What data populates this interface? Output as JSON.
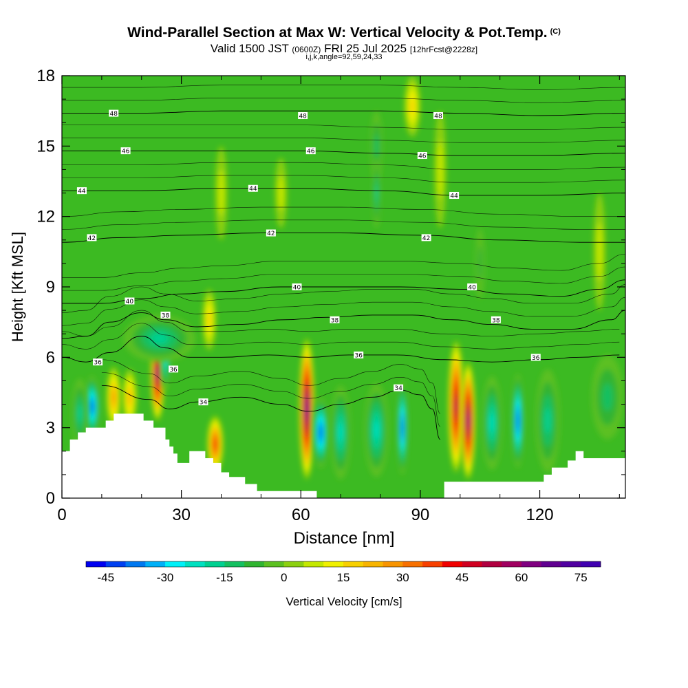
{
  "header": {
    "title": "Wind-Parallel Section at Max W: Vertical Velocity & Pot.Temp.",
    "copyright": "(C)",
    "valid_prefix": "Valid 1500 JST",
    "valid_utc": "(0600Z)",
    "valid_date": "FRI 25 Jul 2025",
    "forecast_info": "[12hrFcst@2228z]",
    "grid_info": "i,j,k,angle=92,59,24,33"
  },
  "chart_data": {
    "type": "heatmap",
    "xlabel": "Distance [nm]",
    "ylabel": "Height [Kft MSL]",
    "xlim": [
      0,
      141.5
    ],
    "ylim": [
      0,
      18
    ],
    "x_ticks": [
      0,
      30,
      60,
      90,
      120
    ],
    "y_ticks": [
      0,
      3,
      6,
      9,
      12,
      15,
      18
    ],
    "x_tick_labels": [
      "0",
      "30",
      "60",
      "90",
      "120"
    ],
    "y_tick_labels": [
      "0",
      "3",
      "6",
      "9",
      "12",
      "15",
      "18"
    ],
    "background_color": "#3cba22",
    "colorbar": {
      "label": "Vertical Velocity [cm/s]",
      "min": -50,
      "max": 80,
      "step": 5,
      "tick_values": [
        -45,
        -30,
        -15,
        0,
        15,
        30,
        45,
        60,
        75
      ],
      "tick_labels": [
        "-45",
        "-30",
        "-15",
        "0",
        "15",
        "30",
        "45",
        "60",
        "75"
      ],
      "colors": [
        "#0000f0",
        "#0040f0",
        "#0078f0",
        "#00b0f8",
        "#00f0f8",
        "#00e0c0",
        "#00d090",
        "#14c060",
        "#30b430",
        "#5cc020",
        "#8cd010",
        "#c4e800",
        "#f0f000",
        "#f8d000",
        "#f8b400",
        "#f89400",
        "#f87000",
        "#f84000",
        "#f00000",
        "#d00020",
        "#b00040",
        "#a00060",
        "#800080",
        "#600090",
        "#5000a0",
        "#4000b0"
      ]
    },
    "terrain": [
      [
        0,
        0
      ],
      [
        0,
        2
      ],
      [
        2,
        2
      ],
      [
        2,
        2.5
      ],
      [
        4,
        2.5
      ],
      [
        4,
        2.8
      ],
      [
        6,
        2.8
      ],
      [
        6,
        3.0
      ],
      [
        11,
        3.0
      ],
      [
        11,
        3.3
      ],
      [
        13,
        3.3
      ],
      [
        13,
        3.6
      ],
      [
        20.5,
        3.6
      ],
      [
        20.5,
        3.3
      ],
      [
        23,
        3.3
      ],
      [
        23,
        3.0
      ],
      [
        26,
        3.0
      ],
      [
        26,
        2.5
      ],
      [
        27,
        2.5
      ],
      [
        27,
        2.2
      ],
      [
        28,
        2.2
      ],
      [
        28,
        1.9
      ],
      [
        29,
        1.9
      ],
      [
        29,
        1.5
      ],
      [
        32,
        1.5
      ],
      [
        32,
        2.0
      ],
      [
        36,
        2.0
      ],
      [
        36,
        1.7
      ],
      [
        38,
        1.7
      ],
      [
        38,
        1.5
      ],
      [
        40,
        1.5
      ],
      [
        40,
        1.1
      ],
      [
        42,
        1.1
      ],
      [
        42,
        0.9
      ],
      [
        46,
        0.9
      ],
      [
        46,
        0.6
      ],
      [
        49,
        0.6
      ],
      [
        49,
        0.3
      ],
      [
        64,
        0.3
      ],
      [
        64,
        0.0
      ],
      [
        96,
        0.0
      ],
      [
        96,
        0.7
      ],
      [
        121,
        0.7
      ],
      [
        121,
        1.0
      ],
      [
        123,
        1.0
      ],
      [
        123,
        1.3
      ],
      [
        127,
        1.3
      ],
      [
        127,
        1.6
      ],
      [
        129,
        1.6
      ],
      [
        129,
        2.0
      ],
      [
        131,
        2.0
      ],
      [
        131,
        1.7
      ],
      [
        141.5,
        1.7
      ],
      [
        141.5,
        0
      ]
    ],
    "velocity_cells": [
      {
        "x": 7.5,
        "y": 3.9,
        "rx": 2.0,
        "ry": 1.3,
        "value": -45
      },
      {
        "x": 4.5,
        "y": 3.6,
        "rx": 2.0,
        "ry": 1.5,
        "value": -20
      },
      {
        "x": 13,
        "y": 4.3,
        "rx": 1.8,
        "ry": 1.3,
        "value": 30
      },
      {
        "x": 17,
        "y": 4.3,
        "rx": 1.8,
        "ry": 1.2,
        "value": 25
      },
      {
        "x": 24,
        "y": 5.3,
        "rx": 1.7,
        "ry": 2.0,
        "value": 70
      },
      {
        "x": 26,
        "y": 6.1,
        "rx": 1.2,
        "ry": 1.5,
        "value": -35
      },
      {
        "x": 24.5,
        "y": 6.8,
        "rx": 9.0,
        "ry": 1.0,
        "value": -20
      },
      {
        "x": 38.5,
        "y": 2.3,
        "rx": 2.0,
        "ry": 1.2,
        "value": 45
      },
      {
        "x": 37,
        "y": 7.6,
        "rx": 1.7,
        "ry": 1.3,
        "value": 20
      },
      {
        "x": 61.5,
        "y": 3.8,
        "rx": 1.9,
        "ry": 3.0,
        "value": 75
      },
      {
        "x": 65,
        "y": 2.8,
        "rx": 2.0,
        "ry": 1.5,
        "value": -45
      },
      {
        "x": 70,
        "y": 2.8,
        "rx": 2.5,
        "ry": 2.0,
        "value": -25
      },
      {
        "x": 79,
        "y": 2.9,
        "rx": 3.0,
        "ry": 2.0,
        "value": -25
      },
      {
        "x": 85.5,
        "y": 3.0,
        "rx": 1.3,
        "ry": 2.0,
        "value": -45
      },
      {
        "x": 99,
        "y": 3.9,
        "rx": 2.0,
        "ry": 2.8,
        "value": 60
      },
      {
        "x": 102,
        "y": 3.3,
        "rx": 1.8,
        "ry": 2.5,
        "value": 70
      },
      {
        "x": 108,
        "y": 3.2,
        "rx": 2.5,
        "ry": 2.0,
        "value": -25
      },
      {
        "x": 114.5,
        "y": 3.3,
        "rx": 1.5,
        "ry": 2.0,
        "value": -45
      },
      {
        "x": 122,
        "y": 3.3,
        "rx": 3.0,
        "ry": 2.2,
        "value": -20
      },
      {
        "x": 137,
        "y": 4.3,
        "rx": 4.0,
        "ry": 1.8,
        "value": -15
      },
      {
        "x": 88,
        "y": 16.7,
        "rx": 2.0,
        "ry": 1.3,
        "value": 20
      },
      {
        "x": 79,
        "y": 15.0,
        "rx": 1.5,
        "ry": 1.5,
        "value": -15
      },
      {
        "x": 79,
        "y": 13.0,
        "rx": 1.0,
        "ry": 1.5,
        "value": -20
      },
      {
        "x": 40,
        "y": 13.0,
        "rx": 1.5,
        "ry": 2.0,
        "value": 10
      },
      {
        "x": 55,
        "y": 13.0,
        "rx": 1.5,
        "ry": 1.5,
        "value": 10
      },
      {
        "x": 95,
        "y": 14.0,
        "rx": 1.5,
        "ry": 2.5,
        "value": 10
      },
      {
        "x": 135,
        "y": 10.5,
        "rx": 1.5,
        "ry": 2.5,
        "value": 10
      },
      {
        "x": 105,
        "y": 10.0,
        "rx": 1.2,
        "ry": 1.5,
        "value": -10
      }
    ],
    "isentropes": [
      {
        "level": 34,
        "x": [
          10,
          22,
          27,
          34,
          45,
          55,
          62,
          70,
          78,
          85,
          90,
          93,
          95
        ],
        "y": [
          4.8,
          4.2,
          3.8,
          4.1,
          4.3,
          4.0,
          3.7,
          4.0,
          4.3,
          4.6,
          4.4,
          3.8,
          2.5
        ]
      },
      {
        "level": 36,
        "x": [
          0,
          6,
          12,
          20,
          26,
          32,
          40,
          52,
          62,
          72,
          84,
          96,
          108,
          120,
          130,
          140
        ],
        "y": [
          6.0,
          5.8,
          6.2,
          6.9,
          6.4,
          6.0,
          6.0,
          6.1,
          6.0,
          6.1,
          6.1,
          5.9,
          5.8,
          5.9,
          6.0,
          6.1
        ]
      },
      {
        "level": 38,
        "x": [
          0,
          6,
          12,
          20,
          26,
          34,
          44,
          56,
          66,
          78,
          88,
          98,
          108,
          118,
          128,
          138,
          141.5
        ],
        "y": [
          6.8,
          6.9,
          7.5,
          7.9,
          7.6,
          7.3,
          7.4,
          7.6,
          7.7,
          7.8,
          7.8,
          7.6,
          7.4,
          7.2,
          7.2,
          7.6,
          8.0
        ]
      },
      {
        "level": 40,
        "x": [
          0,
          10,
          20,
          30,
          40,
          55,
          70,
          85,
          100,
          112,
          125,
          135,
          141.5
        ],
        "y": [
          8.3,
          8.3,
          8.5,
          8.7,
          8.8,
          9.0,
          9.0,
          9.0,
          8.9,
          8.7,
          8.6,
          8.9,
          9.3
        ]
      },
      {
        "level": 42,
        "x": [
          0,
          15,
          30,
          50,
          70,
          90,
          110,
          130,
          141.5
        ],
        "y": [
          10.9,
          11.1,
          11.2,
          11.3,
          11.3,
          11.2,
          11.0,
          10.9,
          10.9
        ]
      },
      {
        "level": 44,
        "x": [
          0,
          20,
          40,
          60,
          80,
          100,
          120,
          141.5
        ],
        "y": [
          13.1,
          13.1,
          13.2,
          13.2,
          13.1,
          12.9,
          12.9,
          13.0
        ]
      },
      {
        "level": 46,
        "x": [
          0,
          20,
          40,
          60,
          80,
          100,
          120,
          141.5
        ],
        "y": [
          14.8,
          14.8,
          14.8,
          14.8,
          14.7,
          14.6,
          14.6,
          14.7
        ]
      },
      {
        "level": 48,
        "x": [
          0,
          20,
          40,
          60,
          80,
          100,
          120,
          141.5
        ],
        "y": [
          16.4,
          16.4,
          16.5,
          16.5,
          16.5,
          16.4,
          16.3,
          16.4
        ]
      }
    ],
    "isentrope_labels": [
      {
        "text": "48",
        "x": 13,
        "y": 16.4
      },
      {
        "text": "48",
        "x": 60.5,
        "y": 16.3
      },
      {
        "text": "48",
        "x": 94.5,
        "y": 16.3
      },
      {
        "text": "46",
        "x": 16,
        "y": 14.8
      },
      {
        "text": "46",
        "x": 62.5,
        "y": 14.8
      },
      {
        "text": "46",
        "x": 90.5,
        "y": 14.6
      },
      {
        "text": "44",
        "x": 5,
        "y": 13.1
      },
      {
        "text": "44",
        "x": 48,
        "y": 13.2
      },
      {
        "text": "44",
        "x": 98.5,
        "y": 12.9
      },
      {
        "text": "42",
        "x": 7.5,
        "y": 11.1
      },
      {
        "text": "42",
        "x": 52.5,
        "y": 11.3
      },
      {
        "text": "42",
        "x": 91.5,
        "y": 11.1
      },
      {
        "text": "40",
        "x": 17,
        "y": 8.4
      },
      {
        "text": "40",
        "x": 59,
        "y": 9.0
      },
      {
        "text": "40",
        "x": 103,
        "y": 9.0
      },
      {
        "text": "38",
        "x": 26,
        "y": 7.8
      },
      {
        "text": "38",
        "x": 68.5,
        "y": 7.6
      },
      {
        "text": "38",
        "x": 109,
        "y": 7.6
      },
      {
        "text": "36",
        "x": 9,
        "y": 5.8
      },
      {
        "text": "36",
        "x": 28,
        "y": 5.5
      },
      {
        "text": "36",
        "x": 74.5,
        "y": 6.1
      },
      {
        "text": "36",
        "x": 119,
        "y": 6.0
      },
      {
        "text": "34",
        "x": 35.5,
        "y": 4.1
      },
      {
        "text": "34",
        "x": 84.5,
        "y": 4.7
      }
    ]
  }
}
